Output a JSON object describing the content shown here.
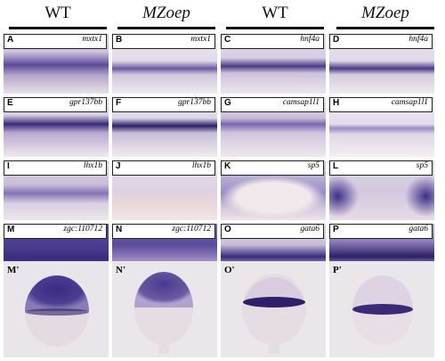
{
  "headers": [
    {
      "label": "WT",
      "italic": false
    },
    {
      "label": "MZoep",
      "italic": true
    },
    {
      "label": "WT",
      "italic": false
    },
    {
      "label": "MZoep",
      "italic": true
    }
  ],
  "rows": [
    [
      {
        "letter": "A",
        "gene": "mxtx1"
      },
      {
        "letter": "B",
        "gene": "mxtx1"
      },
      {
        "letter": "C",
        "gene": "hnf4a"
      },
      {
        "letter": "D",
        "gene": "hnf4a"
      }
    ],
    [
      {
        "letter": "E",
        "gene": "gpr137bb"
      },
      {
        "letter": "F",
        "gene": "gpr137bb"
      },
      {
        "letter": "G",
        "gene": "camsap1l1"
      },
      {
        "letter": "H",
        "gene": "camsap1l1"
      }
    ],
    [
      {
        "letter": "I",
        "gene": "lhx1b"
      },
      {
        "letter": "J",
        "gene": "lhx1b"
      },
      {
        "letter": "K",
        "gene": "sp5"
      },
      {
        "letter": "L",
        "gene": "sp5"
      }
    ],
    [
      {
        "letter": "M",
        "gene": "zgc:110712"
      },
      {
        "letter": "N",
        "gene": "zgc:110712"
      },
      {
        "letter": "O",
        "gene": "gata6"
      },
      {
        "letter": "P",
        "gene": "gata6"
      }
    ]
  ],
  "bottom": [
    {
      "letter": "M'"
    },
    {
      "letter": "N'"
    },
    {
      "letter": "O'"
    },
    {
      "letter": "P'"
    }
  ],
  "colors": {
    "stain": "#3a2a78",
    "bg_light": "#e9e2ea",
    "bg_mid": "#d7cfe0"
  }
}
